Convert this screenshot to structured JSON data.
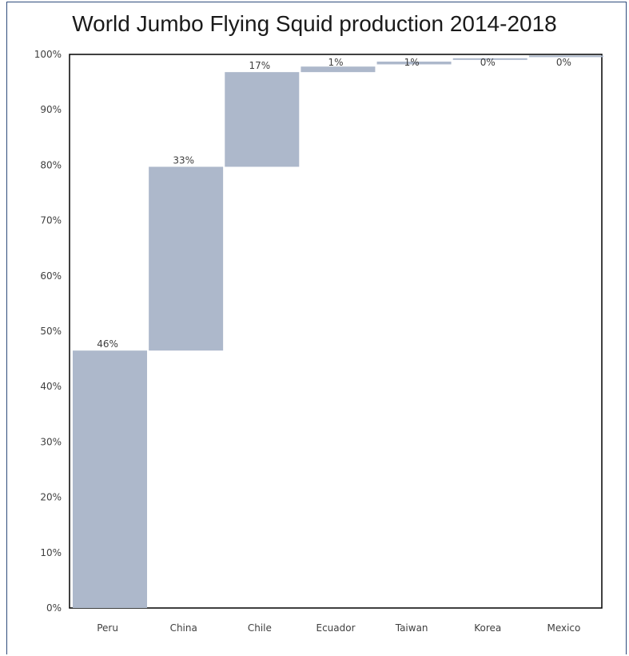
{
  "chart_data": {
    "type": "bar",
    "subtype": "waterfall",
    "title": "World Jumbo Flying Squid production 2014-2018",
    "categories": [
      "Peru",
      "China",
      "Chile",
      "Ecuador",
      "Taiwan",
      "Korea",
      "Mexico"
    ],
    "values": [
      46,
      33,
      17,
      1,
      1,
      0,
      0
    ],
    "cumulative_start": [
      0,
      46.5,
      79.7,
      96.8,
      98.2,
      99.1,
      99.6
    ],
    "cumulative_end": [
      46.5,
      79.7,
      96.8,
      97.8,
      98.7,
      99.3,
      99.8
    ],
    "data_labels": [
      "46%",
      "33%",
      "17%",
      "1%",
      "1%",
      "0%",
      "0%"
    ],
    "yticks": [
      "0%",
      "10%",
      "20%",
      "30%",
      "40%",
      "50%",
      "60%",
      "70%",
      "80%",
      "90%",
      "100%"
    ],
    "ylim": [
      0,
      100
    ],
    "xlabel": "",
    "ylabel": "",
    "bar_color": "#adb8cb",
    "grid": false,
    "legend": "none"
  }
}
